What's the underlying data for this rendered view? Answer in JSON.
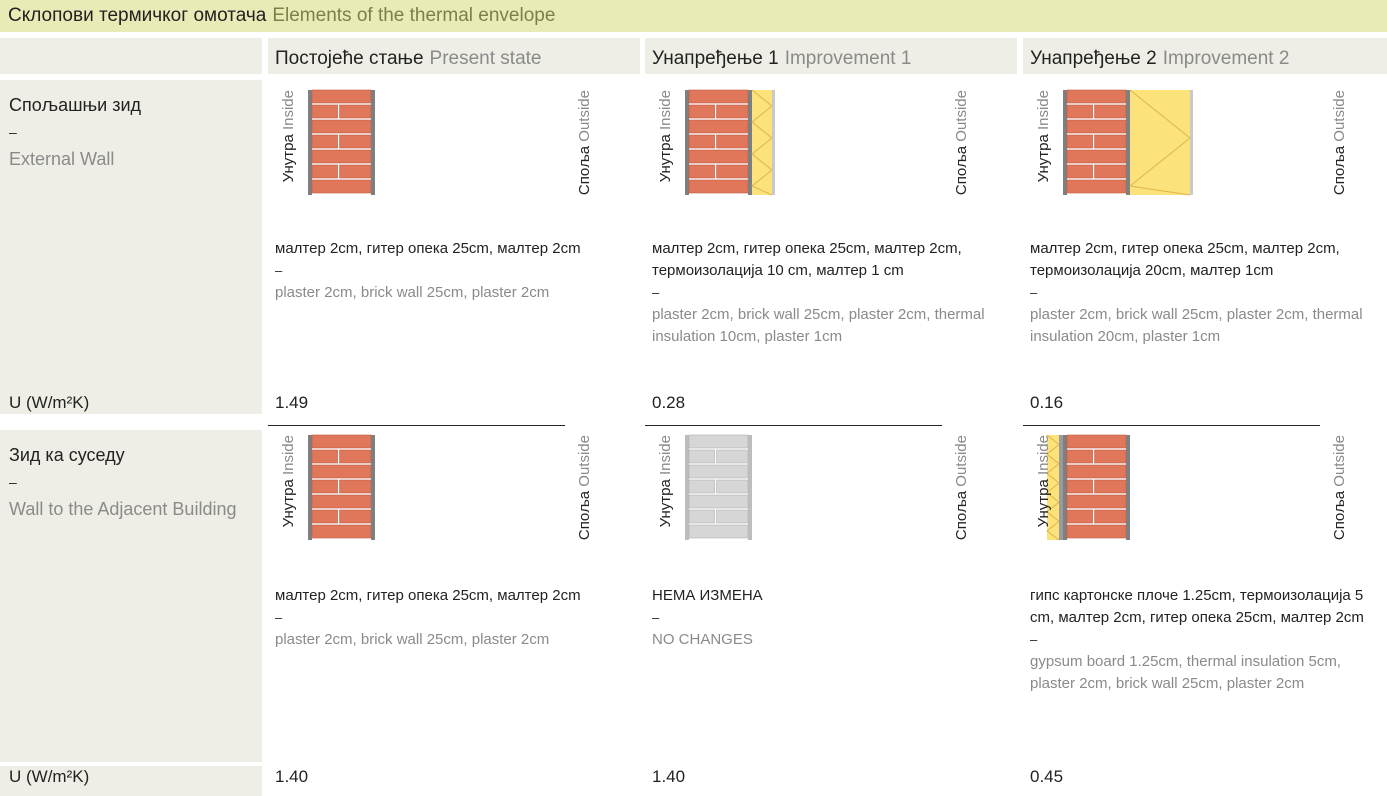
{
  "header": {
    "title_sr": "Склопови термичког омотача",
    "title_en": "Elements of the thermal envelope"
  },
  "columns": [
    {
      "sr": "Постојеће стање",
      "en": "Present state"
    },
    {
      "sr": "Унапређење 1",
      "en": "Improvement 1"
    },
    {
      "sr": "Унапређење 2",
      "en": "Improvement 2"
    }
  ],
  "side_labels": {
    "inside_sr": "Унутра",
    "inside_en": "Inside",
    "outside_sr": "Споља",
    "outside_en": "Outside"
  },
  "separator": "–",
  "u_label": "U (W/m²K)",
  "rows": [
    {
      "label_sr": "Спољашњи зид",
      "label_en": "External Wall",
      "cells": [
        {
          "desc_sr": "малтер 2cm, гитер опека 25cm, малтер 2cm",
          "desc_en": "plaster 2cm, brick wall 25cm, plaster 2cm",
          "u": "1.49"
        },
        {
          "desc_sr": "малтер 2cm, гитер опека 25cm, малтер 2cm, термоизолација 10 cm, малтер 1 cm",
          "desc_en": "plaster 2cm, brick wall 25cm, plaster 2cm, thermal insulation 10cm, plaster 1cm",
          "u": "0.28"
        },
        {
          "desc_sr": "малтер 2cm, гитер опека 25cm, малтер 2cm, термоизолација 20cm, малтер 1cm",
          "desc_en": "plaster 2cm, brick wall 25cm, plaster 2cm, thermal insulation 20cm, plaster 1cm",
          "u": "0.16"
        }
      ]
    },
    {
      "label_sr": "Зид ка суседу",
      "label_en": "Wall to the Adjacent Building",
      "cells": [
        {
          "desc_sr": "малтер 2cm, гитер опека 25cm, малтер 2cm",
          "desc_en": "plaster 2cm, brick wall 25cm, plaster 2cm",
          "u": "1.40"
        },
        {
          "desc_sr": "НЕМА ИЗМЕНА",
          "desc_en": "NO CHANGES",
          "u": "1.40"
        },
        {
          "desc_sr": "гипс картонске плоче 1.25cm, термоизолација 5 cm, малтер 2cm, гитер опека 25cm, малтер 2cm",
          "desc_en": "gypsum board 1.25cm, thermal insulation 5cm, plaster 2cm, brick wall 25cm, plaster 2cm",
          "u": "0.45"
        }
      ]
    }
  ]
}
